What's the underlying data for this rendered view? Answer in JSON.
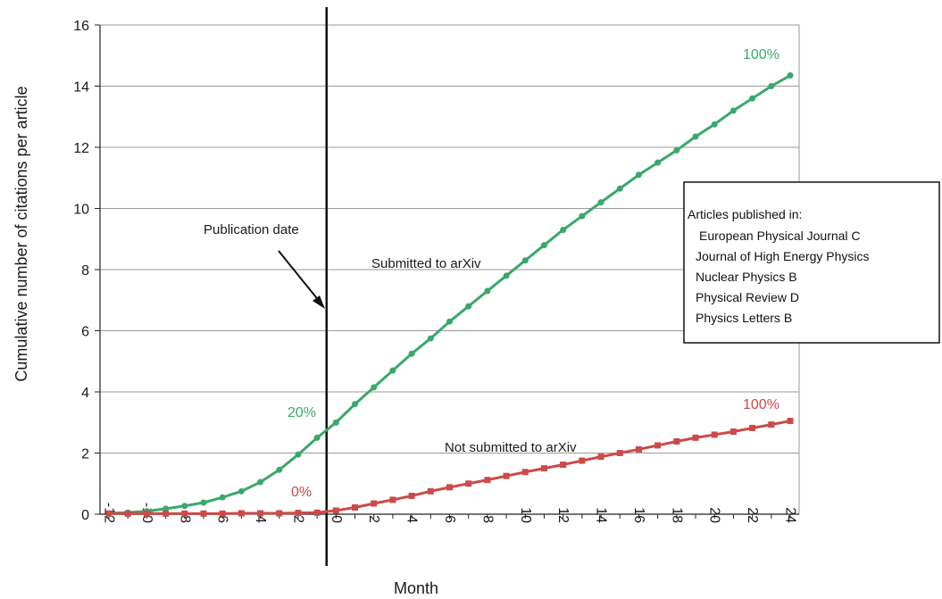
{
  "chart_data": {
    "type": "line",
    "title": "",
    "xlabel": "Month",
    "ylabel": "Cumulative number of citations per article",
    "xlim": [
      -12,
      24
    ],
    "ylim": [
      0,
      16
    ],
    "x_ticks": [
      -12,
      -10,
      -8,
      -6,
      -4,
      -2,
      0,
      2,
      4,
      6,
      8,
      10,
      12,
      14,
      16,
      18,
      20,
      22,
      24
    ],
    "y_ticks": [
      0,
      2,
      4,
      6,
      8,
      10,
      12,
      14,
      16
    ],
    "grid": "horizontal",
    "x": [
      -12,
      -11,
      -10,
      -9,
      -8,
      -7,
      -6,
      -5,
      -4,
      -3,
      -2,
      -1,
      0,
      1,
      2,
      3,
      4,
      5,
      6,
      7,
      8,
      9,
      10,
      11,
      12,
      13,
      14,
      15,
      16,
      17,
      18,
      19,
      20,
      21,
      22,
      23,
      24
    ],
    "series": [
      {
        "name": "Submitted to arXiv",
        "color": "#3aa86b",
        "marker": "circle",
        "values": [
          0.03,
          0.05,
          0.1,
          0.18,
          0.27,
          0.38,
          0.55,
          0.75,
          1.05,
          1.45,
          1.95,
          2.5,
          3.0,
          3.6,
          4.15,
          4.7,
          5.25,
          5.75,
          6.3,
          6.8,
          7.3,
          7.8,
          8.3,
          8.8,
          9.3,
          9.75,
          10.2,
          10.65,
          11.1,
          11.5,
          11.9,
          12.35,
          12.75,
          13.2,
          13.6,
          14.0,
          14.35
        ]
      },
      {
        "name": "Not submitted to arXiv",
        "color": "#cc4a4a",
        "marker": "square",
        "values": [
          0.02,
          0.02,
          0.02,
          0.02,
          0.02,
          0.02,
          0.02,
          0.03,
          0.03,
          0.03,
          0.04,
          0.05,
          0.12,
          0.22,
          0.35,
          0.47,
          0.6,
          0.75,
          0.88,
          1.0,
          1.12,
          1.25,
          1.38,
          1.5,
          1.62,
          1.75,
          1.88,
          2.0,
          2.12,
          2.25,
          2.38,
          2.5,
          2.6,
          2.7,
          2.82,
          2.93,
          3.05
        ]
      }
    ],
    "vertical_line": {
      "x": -0.5
    },
    "annotations": {
      "publication_date": "Publication date",
      "submitted_label": "Submitted to arXiv",
      "not_submitted_label": "Not submitted to arXiv",
      "green_start_pct": "20%",
      "green_end_pct": "100%",
      "red_start_pct": "0%",
      "red_end_pct": "100%"
    },
    "legend": {
      "placement": "right",
      "heading": "Articles published in:",
      "items": [
        "European Physical Journal C",
        "Journal of High Energy Physics",
        "Nuclear Physics B",
        "Physical Review D",
        "Physics Letters B"
      ]
    }
  }
}
